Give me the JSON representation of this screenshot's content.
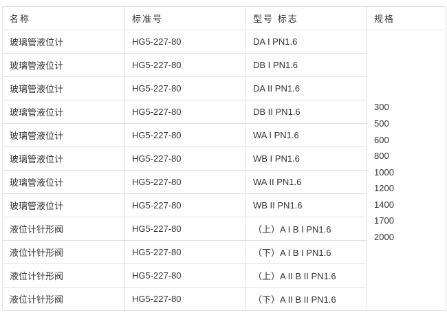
{
  "headers": [
    "名称",
    "标准号",
    "型号 标志",
    "规格"
  ],
  "rows": [
    [
      "玻璃管液位计",
      "HG5-227-80",
      "DA I PN1.6"
    ],
    [
      "玻璃管液位计",
      "HG5-227-80",
      "DB I PN1.6"
    ],
    [
      "玻璃管液位计",
      "HG5-227-80",
      "DA II PN1.6"
    ],
    [
      "玻璃管液位计",
      "HG5-227-80",
      "DB II PN1.6"
    ],
    [
      "玻璃管液位计",
      "HG5-227-80",
      "WA I PN1.6"
    ],
    [
      "玻璃管液位计",
      "HG5-227-80",
      "WB I PN1.6"
    ],
    [
      "玻璃管液位计",
      "HG5-227-80",
      "WA II PN1.6"
    ],
    [
      "玻璃管液位计",
      "HG5-227-80",
      "WB II PN1.6"
    ],
    [
      "液位计针形阀",
      "HG5-227-80",
      "（上）A I B I PN1.6"
    ],
    [
      "液位计针形阀",
      "HG5-227-80",
      "（下）A I B I PN1.6"
    ],
    [
      "液位计针形阀",
      "HG5-227-80",
      "（上）A II B II PN1.6"
    ],
    [
      "液位计针形阀",
      "HG5-227-80",
      "（下）A II B II PN1.6"
    ]
  ],
  "specs": [
    "300",
    "500",
    "600",
    "800",
    "1000",
    "1200",
    "1400",
    "1700",
    "2000"
  ]
}
